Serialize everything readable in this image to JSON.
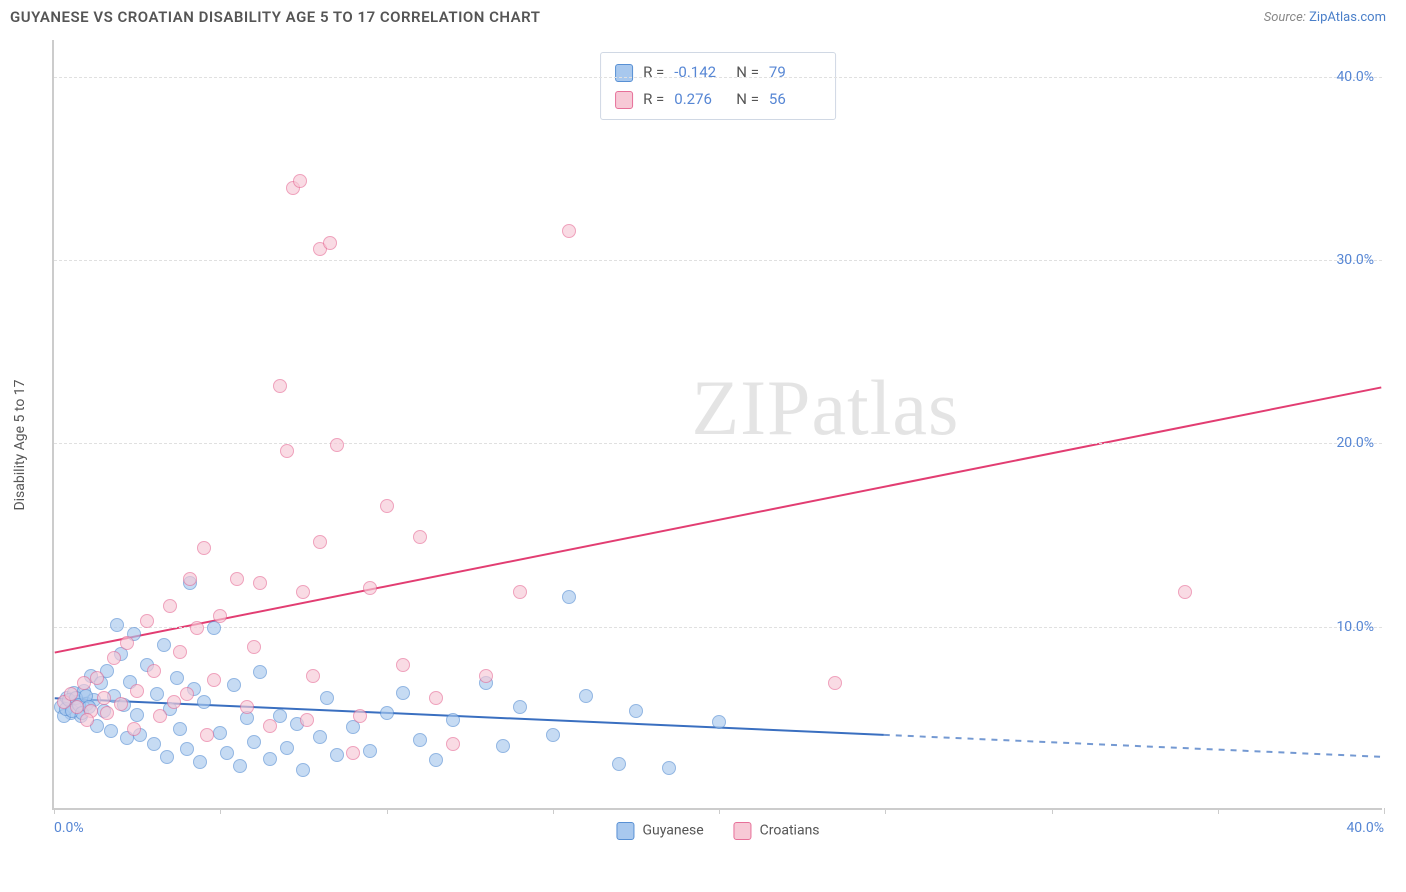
{
  "header": {
    "title": "GUYANESE VS CROATIAN DISABILITY AGE 5 TO 17 CORRELATION CHART",
    "source_prefix": "Source: ",
    "source_link": "ZipAtlas.com"
  },
  "chart": {
    "type": "scatter",
    "ylabel": "Disability Age 5 to 17",
    "xlim": [
      0,
      40
    ],
    "ylim": [
      0,
      42
    ],
    "ytick_values": [
      10,
      20,
      30,
      40
    ],
    "ytick_labels": [
      "10.0%",
      "20.0%",
      "30.0%",
      "40.0%"
    ],
    "xtick_values": [
      0,
      5,
      10,
      15,
      20,
      25,
      30,
      35,
      40
    ],
    "xtick_labels_shown": {
      "0": "0.0%",
      "40": "40.0%"
    },
    "background_color": "#ffffff",
    "grid_color": "#e0e0e0",
    "axis_color": "#cccccc",
    "tick_label_color": "#5686d4",
    "series": [
      {
        "name": "Guyanese",
        "color_fill": "#a8c8ee",
        "color_stroke": "#5890d4",
        "trend": {
          "y_at_x0": 6.0,
          "y_at_x40": 2.8,
          "solid_until_x": 25,
          "color": "#3a6fc0",
          "width": 2
        },
        "points": [
          [
            0.2,
            5.5
          ],
          [
            0.4,
            6.0
          ],
          [
            0.5,
            5.2
          ],
          [
            0.6,
            6.3
          ],
          [
            0.7,
            5.8
          ],
          [
            0.8,
            5.0
          ],
          [
            0.9,
            6.4
          ],
          [
            1.0,
            5.7
          ],
          [
            1.1,
            7.2
          ],
          [
            1.2,
            5.9
          ],
          [
            1.3,
            4.5
          ],
          [
            1.4,
            6.8
          ],
          [
            1.5,
            5.3
          ],
          [
            1.6,
            7.5
          ],
          [
            1.7,
            4.2
          ],
          [
            1.8,
            6.1
          ],
          [
            2.0,
            8.4
          ],
          [
            2.1,
            5.6
          ],
          [
            2.2,
            3.8
          ],
          [
            2.3,
            6.9
          ],
          [
            2.4,
            9.5
          ],
          [
            2.5,
            5.1
          ],
          [
            2.6,
            4.0
          ],
          [
            2.8,
            7.8
          ],
          [
            3.0,
            3.5
          ],
          [
            3.1,
            6.2
          ],
          [
            3.3,
            8.9
          ],
          [
            3.4,
            2.8
          ],
          [
            3.5,
            5.4
          ],
          [
            3.7,
            7.1
          ],
          [
            3.8,
            4.3
          ],
          [
            4.0,
            3.2
          ],
          [
            4.2,
            6.5
          ],
          [
            4.4,
            2.5
          ],
          [
            4.5,
            5.8
          ],
          [
            4.8,
            9.8
          ],
          [
            5.0,
            4.1
          ],
          [
            5.2,
            3.0
          ],
          [
            5.4,
            6.7
          ],
          [
            5.6,
            2.3
          ],
          [
            5.8,
            4.9
          ],
          [
            6.0,
            3.6
          ],
          [
            6.2,
            7.4
          ],
          [
            6.5,
            2.7
          ],
          [
            6.8,
            5.0
          ],
          [
            7.0,
            3.3
          ],
          [
            7.3,
            4.6
          ],
          [
            7.5,
            2.1
          ],
          [
            8.0,
            3.9
          ],
          [
            8.2,
            6.0
          ],
          [
            8.5,
            2.9
          ],
          [
            9.0,
            4.4
          ],
          [
            9.5,
            3.1
          ],
          [
            10.0,
            5.2
          ],
          [
            10.5,
            6.3
          ],
          [
            11.0,
            3.7
          ],
          [
            11.5,
            2.6
          ],
          [
            12.0,
            4.8
          ],
          [
            13.0,
            6.8
          ],
          [
            13.5,
            3.4
          ],
          [
            14.0,
            5.5
          ],
          [
            15.0,
            4.0
          ],
          [
            15.5,
            11.5
          ],
          [
            16.0,
            6.1
          ],
          [
            17.0,
            2.4
          ],
          [
            17.5,
            5.3
          ],
          [
            18.5,
            2.2
          ],
          [
            20.0,
            4.7
          ],
          [
            4.1,
            12.3
          ],
          [
            1.9,
            10.0
          ],
          [
            0.3,
            5.0
          ],
          [
            0.35,
            5.4
          ],
          [
            0.45,
            5.9
          ],
          [
            0.55,
            5.3
          ],
          [
            0.65,
            6.0
          ],
          [
            0.75,
            5.6
          ],
          [
            0.85,
            5.2
          ],
          [
            0.95,
            6.1
          ],
          [
            1.05,
            5.5
          ]
        ]
      },
      {
        "name": "Croatians",
        "color_fill": "#f7c9d6",
        "color_stroke": "#e77099",
        "trend": {
          "y_at_x0": 8.5,
          "y_at_x40": 23.0,
          "solid_until_x": 40,
          "color": "#e23d72",
          "width": 2
        },
        "points": [
          [
            0.3,
            5.8
          ],
          [
            0.5,
            6.2
          ],
          [
            0.7,
            5.5
          ],
          [
            0.9,
            6.8
          ],
          [
            1.1,
            5.3
          ],
          [
            1.3,
            7.1
          ],
          [
            1.5,
            6.0
          ],
          [
            1.8,
            8.2
          ],
          [
            2.0,
            5.7
          ],
          [
            2.2,
            9.0
          ],
          [
            2.5,
            6.4
          ],
          [
            2.8,
            10.2
          ],
          [
            3.0,
            7.5
          ],
          [
            3.2,
            5.0
          ],
          [
            3.5,
            11.0
          ],
          [
            3.8,
            8.5
          ],
          [
            4.0,
            6.2
          ],
          [
            4.3,
            9.8
          ],
          [
            4.5,
            14.2
          ],
          [
            4.8,
            7.0
          ],
          [
            5.0,
            10.5
          ],
          [
            5.5,
            12.5
          ],
          [
            6.0,
            8.8
          ],
          [
            6.2,
            12.3
          ],
          [
            6.5,
            4.5
          ],
          [
            7.0,
            19.5
          ],
          [
            7.5,
            11.8
          ],
          [
            7.8,
            7.2
          ],
          [
            8.0,
            14.5
          ],
          [
            8.5,
            19.8
          ],
          [
            9.0,
            3.0
          ],
          [
            9.5,
            12.0
          ],
          [
            10.0,
            16.5
          ],
          [
            10.5,
            7.8
          ],
          [
            11.0,
            14.8
          ],
          [
            11.5,
            6.0
          ],
          [
            12.0,
            3.5
          ],
          [
            13.0,
            7.2
          ],
          [
            14.0,
            11.8
          ],
          [
            15.5,
            31.5
          ],
          [
            7.2,
            33.8
          ],
          [
            7.4,
            34.2
          ],
          [
            8.0,
            30.5
          ],
          [
            8.3,
            30.8
          ],
          [
            6.8,
            23.0
          ],
          [
            23.5,
            6.8
          ],
          [
            34.0,
            11.8
          ],
          [
            1.0,
            4.8
          ],
          [
            1.6,
            5.2
          ],
          [
            2.4,
            4.3
          ],
          [
            3.6,
            5.8
          ],
          [
            4.6,
            4.0
          ],
          [
            5.8,
            5.5
          ],
          [
            7.6,
            4.8
          ],
          [
            9.2,
            5.0
          ],
          [
            4.1,
            12.5
          ]
        ]
      }
    ],
    "legend": {
      "items": [
        {
          "label": "Guyanese",
          "color_fill": "#a8c8ee",
          "color_stroke": "#5890d4"
        },
        {
          "label": "Croatians",
          "color_fill": "#f7c9d6",
          "color_stroke": "#e77099"
        }
      ]
    },
    "stats_box": {
      "rows": [
        {
          "swatch_fill": "#a8c8ee",
          "swatch_stroke": "#5890d4",
          "r_label": "R =",
          "r": "-0.142",
          "n_label": "N =",
          "n": "79"
        },
        {
          "swatch_fill": "#f7c9d6",
          "swatch_stroke": "#e77099",
          "r_label": "R =",
          "r": "0.276",
          "n_label": "N =",
          "n": "56"
        }
      ]
    },
    "watermark": {
      "zip": "ZIP",
      "atlas": "atlas"
    }
  }
}
